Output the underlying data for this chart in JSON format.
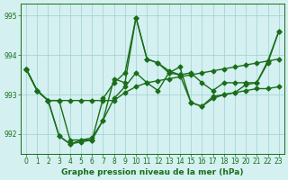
{
  "title": "Graphe pression niveau de la mer (hPa)",
  "background_color": "#d4f0f0",
  "grid_color": "#a0d0d0",
  "line_color": "#1a6e1a",
  "xlim": [
    -0.5,
    23.5
  ],
  "ylim": [
    991.5,
    995.3
  ],
  "yticks": [
    992,
    993,
    994,
    995
  ],
  "xticks": [
    0,
    1,
    2,
    3,
    4,
    5,
    6,
    7,
    8,
    9,
    10,
    11,
    12,
    13,
    14,
    15,
    16,
    17,
    18,
    19,
    20,
    21,
    22,
    23
  ],
  "series": [
    [
      993.65,
      993.1,
      992.85,
      991.95,
      991.75,
      991.8,
      991.85,
      992.35,
      992.9,
      993.2,
      993.55,
      993.3,
      993.1,
      993.55,
      993.7,
      992.8,
      992.7,
      992.95,
      993.0,
      993.05,
      993.1,
      993.15,
      993.15,
      993.2
    ],
    [
      993.65,
      993.1,
      992.85,
      992.85,
      991.85,
      991.85,
      991.85,
      992.9,
      993.3,
      993.55,
      994.95,
      993.9,
      993.8,
      993.6,
      993.5,
      993.55,
      993.3,
      993.1,
      993.3,
      993.3,
      993.3,
      993.3,
      993.8,
      994.6
    ],
    [
      993.65,
      993.1,
      992.85,
      992.85,
      992.85,
      992.85,
      992.85,
      992.85,
      992.85,
      993.05,
      993.2,
      993.3,
      993.35,
      993.4,
      993.45,
      993.5,
      993.55,
      993.6,
      993.65,
      993.7,
      993.75,
      993.8,
      993.85,
      993.9
    ],
    [
      993.65,
      993.1,
      992.85,
      991.95,
      991.75,
      991.85,
      991.9,
      992.35,
      993.4,
      993.3,
      994.95,
      993.9,
      993.8,
      993.55,
      993.5,
      992.8,
      992.7,
      992.9,
      993.0,
      993.05,
      993.25,
      993.3,
      993.85,
      994.6
    ]
  ]
}
